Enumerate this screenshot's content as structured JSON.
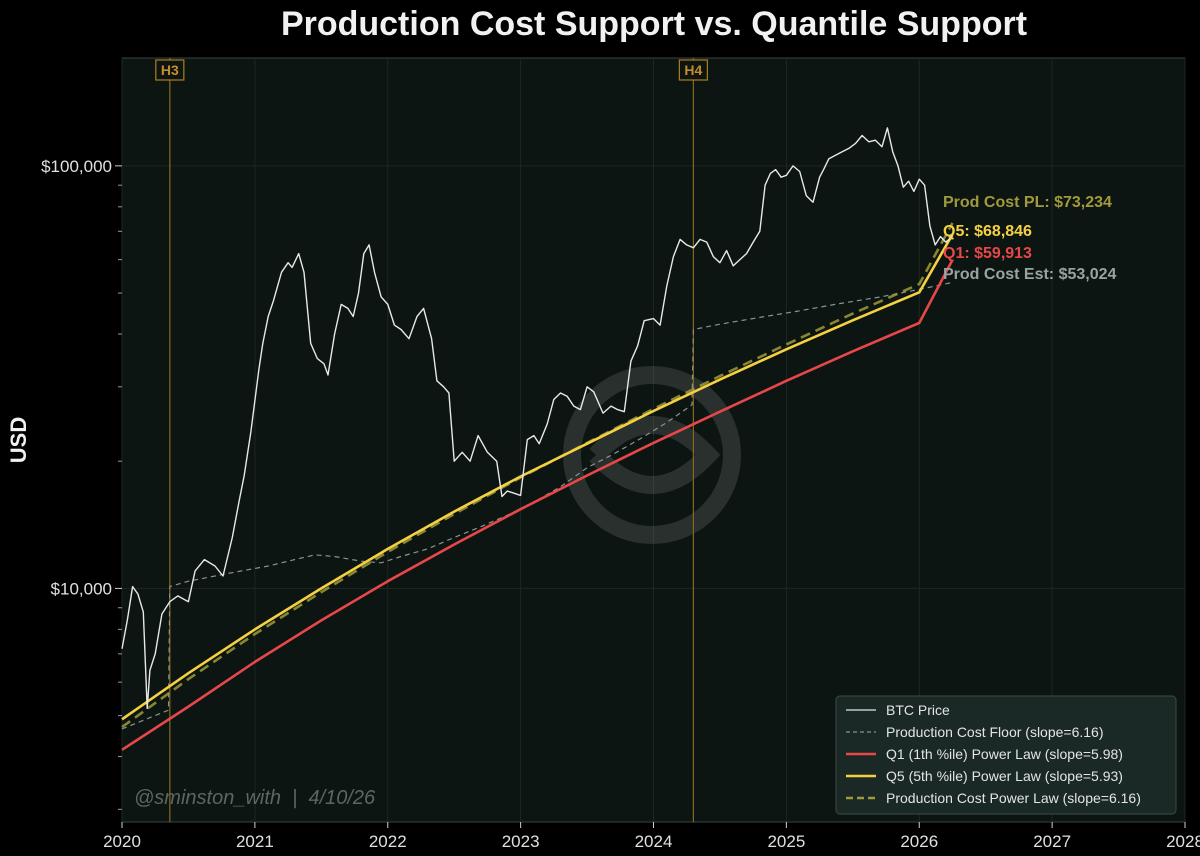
{
  "chart_data": {
    "type": "line",
    "title": "Production Cost Support vs. Quantile Support",
    "ylabel": "USD",
    "xlabel": "",
    "yscale": "log",
    "xlim": [
      2020,
      2028
    ],
    "ylim": [
      2800,
      180000
    ],
    "x_ticks": [
      "2020",
      "2021",
      "2022",
      "2023",
      "2024",
      "2025",
      "2026",
      "2027",
      "2028"
    ],
    "y_ticks": [
      {
        "value": 10000,
        "label": "$10,000"
      },
      {
        "value": 100000,
        "label": "$100,000"
      }
    ],
    "watermark": "@sminston_with  |  4/10/26",
    "halvings": [
      {
        "label": "H3",
        "x": 2020.36
      },
      {
        "label": "H4",
        "x": 2024.3
      }
    ],
    "end_labels": [
      {
        "text": "Prod Cost PL: $73,234",
        "value": 73234,
        "color": "#a09a3a"
      },
      {
        "text": "Q5: $68,846",
        "value": 68846,
        "color": "#f5d142"
      },
      {
        "text": "Q1: $59,913",
        "value": 59913,
        "color": "#e8474a"
      },
      {
        "text": "Prod Cost Est: $53,024",
        "value": 53024,
        "color": "#9aa3a0"
      }
    ],
    "legend": [
      {
        "label": "BTC Price",
        "style": "solid",
        "color": "#e8e8e8"
      },
      {
        "label": "Production Cost Floor (slope=6.16)",
        "style": "dashed",
        "color": "#8a938f"
      },
      {
        "label": "Q1 (1th %ile) Power Law (slope=5.98)",
        "style": "solid",
        "color": "#e8474a"
      },
      {
        "label": "Q5 (5th %ile) Power Law (slope=5.93)",
        "style": "solid",
        "color": "#f5d142"
      },
      {
        "label": "Production Cost Power Law (slope=6.16)",
        "style": "dashed",
        "color": "#a09a3a"
      }
    ],
    "legend_position": "lower-right",
    "series": [
      {
        "name": "BTC Price",
        "color": "#e8e8e8",
        "x": [
          2020.0,
          2020.04,
          2020.08,
          2020.12,
          2020.16,
          2020.19,
          2020.21,
          2020.25,
          2020.3,
          2020.36,
          2020.42,
          2020.5,
          2020.55,
          2020.62,
          2020.7,
          2020.76,
          2020.83,
          2020.88,
          2020.92,
          2020.97,
          2021.03,
          2021.06,
          2021.1,
          2021.14,
          2021.2,
          2021.25,
          2021.28,
          2021.33,
          2021.37,
          2021.42,
          2021.47,
          2021.52,
          2021.55,
          2021.6,
          2021.65,
          2021.7,
          2021.74,
          2021.78,
          2021.82,
          2021.86,
          2021.9,
          2021.95,
          2022.0,
          2022.05,
          2022.1,
          2022.16,
          2022.22,
          2022.27,
          2022.33,
          2022.37,
          2022.42,
          2022.46,
          2022.5,
          2022.56,
          2022.62,
          2022.68,
          2022.75,
          2022.82,
          2022.86,
          2022.9,
          2022.95,
          2023.0,
          2023.05,
          2023.1,
          2023.14,
          2023.2,
          2023.25,
          2023.3,
          2023.35,
          2023.4,
          2023.45,
          2023.5,
          2023.55,
          2023.62,
          2023.68,
          2023.73,
          2023.78,
          2023.83,
          2023.88,
          2023.93,
          2024.0,
          2024.05,
          2024.1,
          2024.15,
          2024.2,
          2024.25,
          2024.3,
          2024.35,
          2024.4,
          2024.45,
          2024.5,
          2024.55,
          2024.6,
          2024.65,
          2024.7,
          2024.75,
          2024.8,
          2024.84,
          2024.88,
          2024.92,
          2024.96,
          2025.0,
          2025.05,
          2025.1,
          2025.15,
          2025.2,
          2025.25,
          2025.28,
          2025.32,
          2025.37,
          2025.42,
          2025.47,
          2025.52,
          2025.57,
          2025.62,
          2025.67,
          2025.72,
          2025.76,
          2025.8,
          2025.84,
          2025.88,
          2025.92,
          2025.96,
          2026.0,
          2026.04,
          2026.08,
          2026.12,
          2026.16,
          2026.2,
          2026.25
        ],
        "values": [
          7200,
          8400,
          10100,
          9700,
          8800,
          5200,
          6400,
          7000,
          8700,
          9300,
          9600,
          9300,
          11000,
          11700,
          11300,
          10700,
          13200,
          16000,
          18500,
          23500,
          33000,
          38000,
          44000,
          48000,
          56000,
          59000,
          57500,
          62000,
          56000,
          38000,
          35000,
          34000,
          32000,
          40000,
          47000,
          46000,
          44000,
          50000,
          62000,
          65000,
          56000,
          49000,
          47000,
          42000,
          41000,
          39000,
          44000,
          46000,
          39000,
          31000,
          30000,
          29000,
          20000,
          21000,
          20000,
          23000,
          21000,
          20000,
          16500,
          17000,
          16800,
          16600,
          22500,
          23000,
          22000,
          24500,
          28000,
          29000,
          28500,
          27000,
          26500,
          30000,
          29200,
          26000,
          27000,
          26500,
          26200,
          34500,
          37500,
          43000,
          43500,
          42000,
          52000,
          61000,
          67000,
          65000,
          64000,
          67000,
          66000,
          61000,
          59000,
          63000,
          58000,
          60000,
          62000,
          66000,
          70000,
          90000,
          96000,
          98000,
          94000,
          95000,
          100000,
          97000,
          85000,
          82000,
          94000,
          98000,
          104000,
          106000,
          108000,
          110000,
          113000,
          118000,
          114000,
          115000,
          111000,
          123000,
          108000,
          100000,
          89000,
          92000,
          87000,
          93000,
          90000,
          72000,
          65000,
          68000,
          66000,
          68000
        ]
      },
      {
        "name": "Production Cost Floor (slope=6.16)",
        "color": "#8a938f",
        "dashed": true,
        "x": [
          2020.0,
          2020.18,
          2020.35,
          2020.36,
          2020.5,
          2020.7,
          2020.9,
          2021.1,
          2021.3,
          2021.45,
          2021.6,
          2021.8,
          2021.95,
          2022.1,
          2022.3,
          2022.5,
          2022.7,
          2022.9,
          2023.1,
          2023.3,
          2023.5,
          2023.7,
          2023.9,
          2024.1,
          2024.29,
          2024.3,
          2024.5,
          2024.8,
          2025.1,
          2025.4,
          2025.7,
          2026.0,
          2026.25
        ],
        "values": [
          4650,
          4900,
          5150,
          10100,
          10400,
          10700,
          11000,
          11300,
          11700,
          12000,
          11900,
          11600,
          11500,
          11900,
          12400,
          13200,
          14000,
          14900,
          16000,
          17400,
          19300,
          20800,
          22600,
          24700,
          27200,
          41000,
          42200,
          43800,
          45400,
          47200,
          48900,
          51000,
          53000
        ]
      },
      {
        "name": "Q1 (1th %ile) Power Law (slope=5.98)",
        "color": "#e8474a",
        "x": [
          2020,
          2020.5,
          2021,
          2021.5,
          2022,
          2022.5,
          2023,
          2023.5,
          2024,
          2024.5,
          2025,
          2025.5,
          2026,
          2026.25
        ],
        "values": [
          4150,
          5250,
          6700,
          8400,
          10400,
          12700,
          15400,
          18500,
          22100,
          26200,
          31000,
          36400,
          42500,
          59913
        ]
      },
      {
        "name": "Q5 (5th %ile) Power Law (slope=5.93)",
        "color": "#f5d142",
        "x": [
          2020,
          2020.5,
          2021,
          2021.5,
          2022,
          2022.5,
          2023,
          2023.5,
          2024,
          2024.5,
          2025,
          2025.5,
          2026,
          2026.25
        ],
        "values": [
          4900,
          6300,
          8000,
          10000,
          12400,
          15200,
          18400,
          22000,
          26300,
          31200,
          36800,
          43100,
          50200,
          68846
        ]
      },
      {
        "name": "Production Cost Power Law (slope=6.16)",
        "color": "#a09a3a",
        "dashed": true,
        "x": [
          2020,
          2020.5,
          2021,
          2021.5,
          2022,
          2022.5,
          2023,
          2023.5,
          2024,
          2024.5,
          2025,
          2025.5,
          2026,
          2026.25
        ],
        "values": [
          4700,
          6100,
          7800,
          9800,
          12200,
          15000,
          18300,
          22100,
          26600,
          31800,
          37800,
          44700,
          52500,
          73234
        ]
      }
    ]
  }
}
